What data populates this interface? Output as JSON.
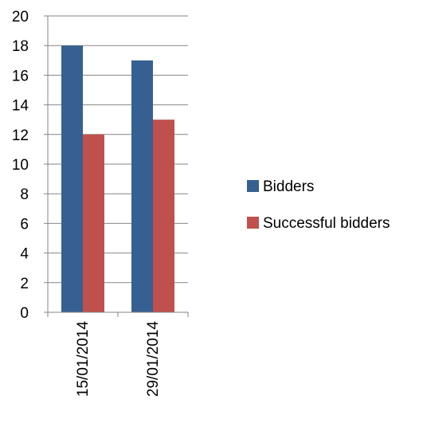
{
  "chart_data": {
    "type": "bar",
    "categories": [
      "15/01/2014",
      "29/01/2014"
    ],
    "series": [
      {
        "name": "Bidders",
        "values": [
          18,
          17
        ],
        "color": "#376092"
      },
      {
        "name": "Successful bidders",
        "values": [
          12,
          13
        ],
        "color": "#C0504D"
      }
    ],
    "ylim": [
      0,
      20
    ],
    "ytick_step": 2,
    "grid": true,
    "legend": "right",
    "xlabel": "",
    "ylabel": "",
    "title": ""
  }
}
